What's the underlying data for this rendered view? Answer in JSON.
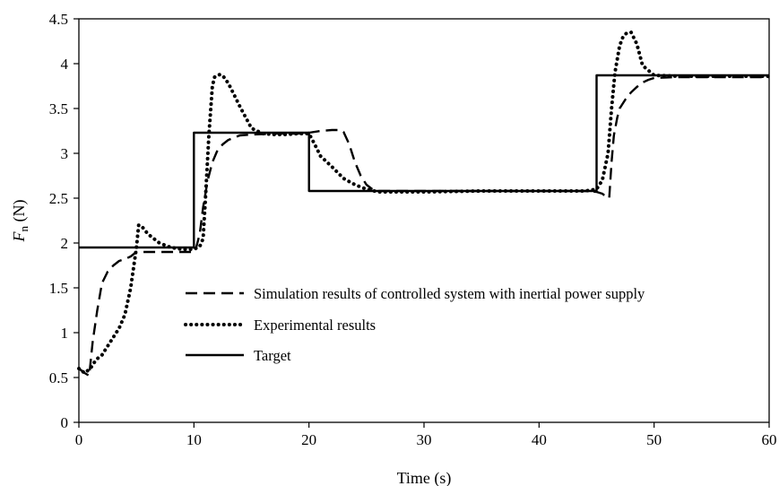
{
  "chart_data": {
    "type": "line",
    "title": "",
    "xlabel": "Time (s)",
    "ylabel_main": "F",
    "ylabel_sub": "n",
    "ylabel_unit": " (N)",
    "xlim": [
      0,
      60
    ],
    "ylim": [
      0,
      4.5
    ],
    "xticks": [
      0,
      10,
      20,
      30,
      40,
      50,
      60
    ],
    "yticks": [
      0,
      0.5,
      1,
      1.5,
      2,
      2.5,
      3,
      3.5,
      4,
      4.5
    ],
    "xtick_labels": [
      "0",
      "10",
      "20",
      "30",
      "40",
      "50",
      "60"
    ],
    "ytick_labels": [
      "0",
      "0.5",
      "1",
      "1.5",
      "2",
      "2.5",
      "3",
      "3.5",
      "4",
      "4.5"
    ],
    "grid": false,
    "legend_position": "center-left",
    "series": [
      {
        "name": "Simulation results of controlled system with inertial power supply",
        "style": "dashed",
        "color": "#000000",
        "x": [
          0,
          0.5,
          0.9,
          1.2,
          1.6,
          2.0,
          2.5,
          3.0,
          3.5,
          4.0,
          4.5,
          5.0,
          6.0,
          7.0,
          8.0,
          9.0,
          10.0,
          10.2,
          10.5,
          10.8,
          11.2,
          11.6,
          12.0,
          12.5,
          13.0,
          14.0,
          15.0,
          17.0,
          19.0,
          20.0,
          21.0,
          22.0,
          22.5,
          23.0,
          23.5,
          24.0,
          24.5,
          25.0,
          25.5,
          26.0,
          28.0,
          30.0,
          35.0,
          40.0,
          44.0,
          45.0,
          45.5,
          45.8,
          46.1,
          46.3,
          46.5,
          46.8,
          47.0,
          47.5,
          48.0,
          48.5,
          49.0,
          49.5,
          50.0,
          52.0,
          55.0,
          60.0
        ],
        "y": [
          0.6,
          0.55,
          0.52,
          0.9,
          1.25,
          1.55,
          1.68,
          1.75,
          1.8,
          1.82,
          1.85,
          1.9,
          1.9,
          1.9,
          1.9,
          1.9,
          1.9,
          1.95,
          2.1,
          2.4,
          2.7,
          2.9,
          3.02,
          3.1,
          3.15,
          3.2,
          3.21,
          3.22,
          3.22,
          3.23,
          3.25,
          3.26,
          3.26,
          3.24,
          3.1,
          2.9,
          2.75,
          2.65,
          2.6,
          2.58,
          2.58,
          2.58,
          2.58,
          2.58,
          2.58,
          2.57,
          2.55,
          2.52,
          2.5,
          2.9,
          3.2,
          3.4,
          3.5,
          3.6,
          3.68,
          3.74,
          3.79,
          3.82,
          3.84,
          3.85,
          3.85,
          3.85
        ]
      },
      {
        "name": "Experimental results",
        "style": "dotted",
        "color": "#000000",
        "x": [
          0,
          0.5,
          1.0,
          1.5,
          2.0,
          2.5,
          3.0,
          3.5,
          4.0,
          4.5,
          5.0,
          5.2,
          5.5,
          6.0,
          6.5,
          7.0,
          8.0,
          9.0,
          10.0,
          10.5,
          10.8,
          11.0,
          11.3,
          11.6,
          11.8,
          12.0,
          12.3,
          12.6,
          13.0,
          13.5,
          14.0,
          14.5,
          15.0,
          16.0,
          17.0,
          18.0,
          19.0,
          20.0,
          20.5,
          21.0,
          22.0,
          23.0,
          24.0,
          25.0,
          26.0,
          28.0,
          30.0,
          35.0,
          40.0,
          44.0,
          45.0,
          45.5,
          46.0,
          46.3,
          46.6,
          47.0,
          47.3,
          47.6,
          48.0,
          48.5,
          49.0,
          50.0,
          52.0,
          55.0,
          60.0
        ],
        "y": [
          0.6,
          0.55,
          0.6,
          0.7,
          0.75,
          0.85,
          0.95,
          1.05,
          1.2,
          1.5,
          1.95,
          2.2,
          2.18,
          2.1,
          2.05,
          2.0,
          1.95,
          1.93,
          1.93,
          1.96,
          2.05,
          2.5,
          3.2,
          3.75,
          3.85,
          3.87,
          3.88,
          3.85,
          3.78,
          3.65,
          3.52,
          3.4,
          3.28,
          3.22,
          3.21,
          3.21,
          3.22,
          3.22,
          3.1,
          2.97,
          2.85,
          2.72,
          2.65,
          2.6,
          2.57,
          2.57,
          2.57,
          2.58,
          2.58,
          2.58,
          2.6,
          2.7,
          3.0,
          3.5,
          3.9,
          4.2,
          4.3,
          4.34,
          4.35,
          4.22,
          3.98,
          3.87,
          3.86,
          3.86,
          3.86
        ]
      },
      {
        "name": "Target",
        "style": "solid",
        "color": "#000000",
        "x": [
          0,
          10,
          10,
          20,
          20,
          45,
          45,
          60
        ],
        "y": [
          1.95,
          1.95,
          3.23,
          3.23,
          2.58,
          2.58,
          3.87,
          3.87
        ]
      }
    ]
  }
}
